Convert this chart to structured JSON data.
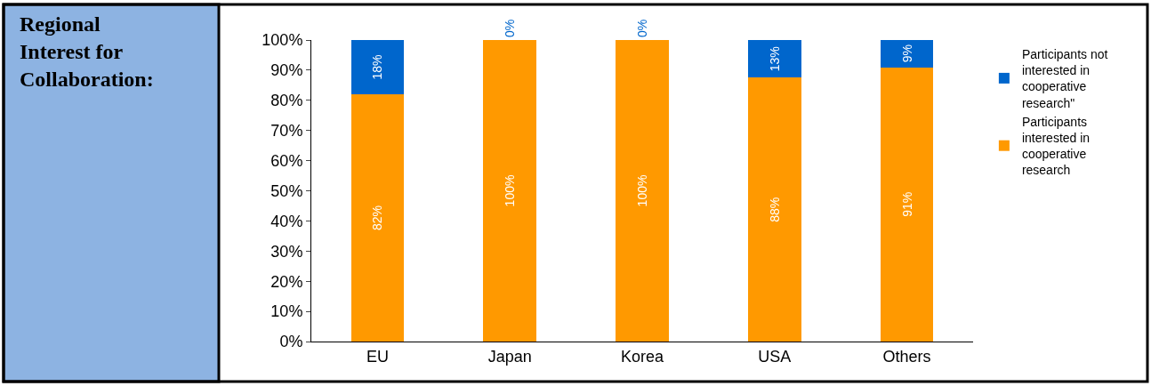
{
  "chart_data": {
    "type": "bar",
    "stacked": true,
    "title": "Regional Interest for Collaboration:",
    "categories": [
      "EU",
      "Japan",
      "Korea",
      "USA",
      "Others"
    ],
    "series": [
      {
        "name": "Participants interested in cooperative research",
        "color": "#ff9900",
        "values": [
          82,
          100,
          100,
          87.5,
          91
        ],
        "value_labels": [
          "82%",
          "100%",
          "100%",
          "88%",
          "91%"
        ]
      },
      {
        "name": "Participants not interested in cooperative research\"",
        "color": "#0066cc",
        "values": [
          18,
          0,
          0,
          12.5,
          9
        ],
        "value_labels": [
          "18%",
          "0%",
          "0%",
          "13%",
          "9%"
        ]
      }
    ],
    "ylim": [
      0,
      100
    ],
    "yticks": [
      {
        "value": 0,
        "label": "0%"
      },
      {
        "value": 10,
        "label": "10%"
      },
      {
        "value": 20,
        "label": "20%"
      },
      {
        "value": 30,
        "label": "30%"
      },
      {
        "value": 40,
        "label": "40%"
      },
      {
        "value": 50,
        "label": "50%"
      },
      {
        "value": 60,
        "label": "60%"
      },
      {
        "value": 70,
        "label": "70%"
      },
      {
        "value": 80,
        "label": "80%"
      },
      {
        "value": 90,
        "label": "90%"
      },
      {
        "value": 100,
        "label": "100%"
      }
    ],
    "legend": "right"
  }
}
